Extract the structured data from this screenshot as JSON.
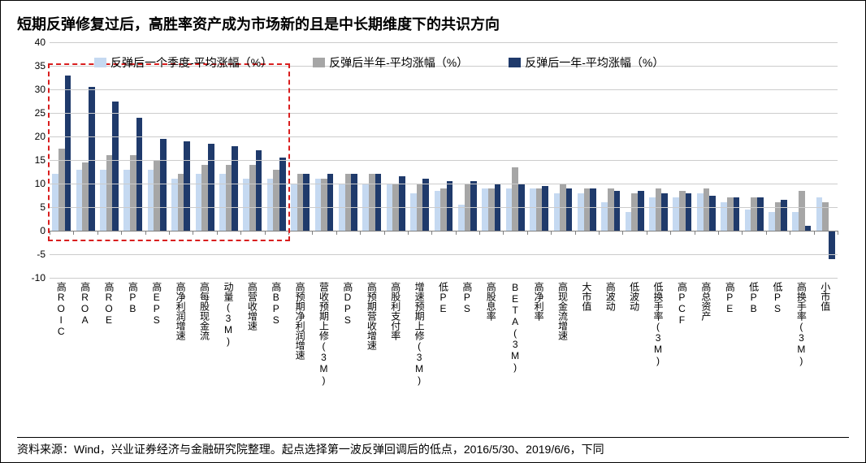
{
  "title": "短期反弹修复过后，高胜率资产成为市场新的且是中长期维度下的共识方向",
  "source": "资料来源：Wind，兴业证券经济与金融研究院整理。起点选择第一波反弹回调后的低点，2016/5/30、2019/6/6，下同",
  "chart": {
    "type": "bar",
    "ylim": [
      -10,
      40
    ],
    "ytick_step": 5,
    "yticks": [
      -10,
      -5,
      0,
      5,
      10,
      15,
      20,
      25,
      30,
      35,
      40
    ],
    "grid_color": "#cccccc",
    "zero_line_color": "#808080",
    "background_color": "#ffffff",
    "highlight_box_color": "#d91e1e",
    "highlight_range": [
      0,
      9
    ],
    "legend": {
      "items": [
        {
          "label": "反弹后一个季度-平均涨幅（%）",
          "color": "#c5d9f1"
        },
        {
          "label": "反弹后半年-平均涨幅（%）",
          "color": "#a6a6a6"
        },
        {
          "label": "反弹后一年-平均涨幅（%）",
          "color": "#1f3a6b"
        }
      ]
    },
    "categories": [
      "高ROIC",
      "高ROA",
      "高ROE",
      "高PB",
      "高EPS",
      "高净利润增速",
      "高每股现金流",
      "动量(3M)",
      "高营收增速",
      "高BPS",
      "高预期净利润增速",
      "营收预期上修(3M)",
      "高DPS",
      "高预期营收增速",
      "高股利支付率",
      "增速预期上修(3M)",
      "低PE",
      "高PS",
      "高股息率",
      "BETA(3M)",
      "高净利率",
      "高现金流增速",
      "大市值",
      "高波动",
      "低波动",
      "低换手率(3M)",
      "高PCF",
      "高总资产",
      "高PE",
      "低PB",
      "低PS",
      "高换手率(3M)",
      "小市值"
    ],
    "series": [
      {
        "name": "q",
        "color": "#c5d9f1",
        "values": [
          12,
          13,
          13,
          13,
          13,
          11,
          12,
          12,
          11,
          11,
          10,
          11,
          10,
          10,
          10,
          8,
          8.5,
          5.5,
          9,
          9,
          9,
          8,
          8,
          6,
          4,
          7,
          7,
          8,
          6,
          4.5,
          4,
          4,
          7
        ]
      },
      {
        "name": "h",
        "color": "#a6a6a6",
        "values": [
          17.5,
          14.5,
          16,
          16,
          15,
          12,
          14,
          14,
          14,
          13,
          12,
          11,
          12,
          12,
          10,
          10,
          9,
          10,
          9,
          13.5,
          9,
          10,
          9,
          9,
          8,
          9,
          8.5,
          9,
          7,
          7,
          6,
          8.5,
          6
        ]
      },
      {
        "name": "y",
        "color": "#1f3a6b",
        "values": [
          33,
          30.5,
          27.5,
          24,
          19.5,
          19,
          18.5,
          18,
          17,
          15.5,
          12,
          12,
          12,
          12,
          11.5,
          11,
          10.5,
          10.5,
          10,
          10,
          9.5,
          9,
          9,
          8.5,
          8.5,
          8,
          8,
          7.5,
          7,
          7,
          6.5,
          1,
          -6
        ]
      }
    ],
    "bar_width_ratio": 0.26,
    "group_count": 33,
    "axis_fontsize": 12,
    "label_fontsize": 12,
    "title_fontsize": 18
  }
}
